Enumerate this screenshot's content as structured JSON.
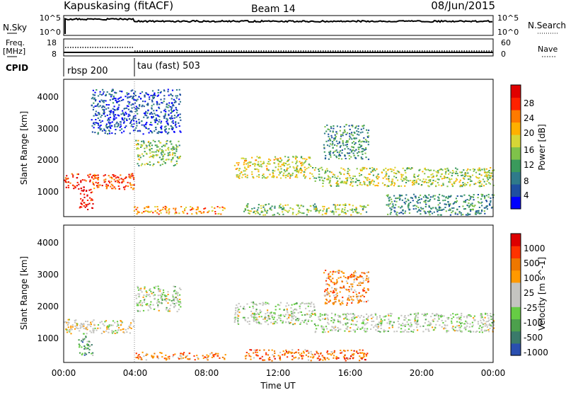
{
  "header": {
    "station": "Kapuskasing (fitACF)",
    "beam": "Beam 14",
    "date": "08/Jun/2015"
  },
  "nsky_panel": {
    "left_label": "N.Sky",
    "right_label": "N.Search",
    "left_ticks": [
      "10^5",
      "10^0"
    ],
    "right_ticks": [
      "10^5",
      "10^0"
    ]
  },
  "freq_panel": {
    "left_label_1": "Freq.",
    "left_label_2": "[MHz]",
    "right_label": "Nave",
    "left_ticks": [
      "18",
      "8"
    ],
    "right_ticks": [
      "60",
      "0"
    ]
  },
  "cpid_panel": {
    "label": "CPID",
    "programs": [
      {
        "name": "rbsp 200",
        "start_hour": 0
      },
      {
        "name": "tau (fast) 503",
        "start_hour": 4
      }
    ]
  },
  "chart_data": [
    {
      "type": "heatmap",
      "title": "",
      "xlabel": "",
      "ylabel": "Slant Range [km]",
      "x_range_hours": [
        0,
        24
      ],
      "ylim": [
        180,
        4500
      ],
      "x_ticks": [],
      "y_ticks": [
        "1000",
        "2000",
        "3000",
        "4000"
      ],
      "colorbar": {
        "label": "Power [dB]",
        "ticks": [
          "4",
          "8",
          "12",
          "16",
          "20",
          "24",
          "28"
        ],
        "colors": [
          "#0000ff",
          "#1f4fa0",
          "#2f7a8a",
          "#3a9a5c",
          "#7fc24a",
          "#d6d636",
          "#ffb000",
          "#ff7a00",
          "#ff2200",
          "#e00000"
        ]
      },
      "regions": [
        {
          "hours": [
            0.0,
            3.9
          ],
          "range_km": [
            1050,
            1550
          ],
          "level": 0.85
        },
        {
          "hours": [
            0.8,
            1.6
          ],
          "range_km": [
            420,
            1050
          ],
          "level": 0.95
        },
        {
          "hours": [
            3.9,
            9.0
          ],
          "range_km": [
            280,
            520
          ],
          "level": 0.7
        },
        {
          "hours": [
            4.0,
            6.5
          ],
          "range_km": [
            1800,
            2600
          ],
          "level": 0.45
        },
        {
          "hours": [
            1.5,
            6.5
          ],
          "range_km": [
            2800,
            4200
          ],
          "level": 0.15
        },
        {
          "hours": [
            9.5,
            14.0
          ],
          "range_km": [
            1400,
            2100
          ],
          "level": 0.55
        },
        {
          "hours": [
            14.0,
            24.0
          ],
          "range_km": [
            1150,
            1750
          ],
          "level": 0.5
        },
        {
          "hours": [
            10.0,
            17.0
          ],
          "range_km": [
            250,
            600
          ],
          "level": 0.45
        },
        {
          "hours": [
            14.5,
            17.0
          ],
          "range_km": [
            2000,
            3100
          ],
          "level": 0.3
        },
        {
          "hours": [
            18.0,
            24.0
          ],
          "range_km": [
            250,
            900
          ],
          "level": 0.3
        }
      ]
    },
    {
      "type": "heatmap",
      "title": "",
      "xlabel": "Time UT",
      "ylabel": "Slant Range [km]",
      "x_range_hours": [
        0,
        24
      ],
      "ylim": [
        180,
        4500
      ],
      "x_ticks": [
        "00:00",
        "04:00",
        "08:00",
        "12:00",
        "16:00",
        "20:00",
        "00:00"
      ],
      "y_ticks": [
        "1000",
        "2000",
        "3000",
        "4000"
      ],
      "colorbar": {
        "label": "Velocity [m s^-1]",
        "ticks": [
          "1000",
          "500",
          "100",
          "25",
          "-25",
          "-100",
          "-500",
          "-1000"
        ],
        "colors": [
          "#2a4fb0",
          "#3a7a6a",
          "#4ca04c",
          "#66cc44",
          "#c4c4c0",
          "#c4c4c0",
          "#ff9900",
          "#ee7700",
          "#ff3300",
          "#dd0000"
        ]
      },
      "regions": [
        {
          "hours": [
            0.0,
            3.9
          ],
          "range_km": [
            1100,
            1550
          ],
          "level": 0.5
        },
        {
          "hours": [
            0.8,
            1.6
          ],
          "range_km": [
            420,
            1050
          ],
          "level": 0.25
        },
        {
          "hours": [
            3.9,
            9.0
          ],
          "range_km": [
            280,
            520
          ],
          "level": 0.7
        },
        {
          "hours": [
            4.0,
            6.5
          ],
          "range_km": [
            1800,
            2600
          ],
          "level": 0.45
        },
        {
          "hours": [
            9.5,
            14.0
          ],
          "range_km": [
            1400,
            2100
          ],
          "level": 0.45
        },
        {
          "hours": [
            14.0,
            24.0
          ],
          "range_km": [
            1150,
            1750
          ],
          "level": 0.45
        },
        {
          "hours": [
            10.0,
            17.0
          ],
          "range_km": [
            250,
            600
          ],
          "level": 0.75
        },
        {
          "hours": [
            14.5,
            17.0
          ],
          "range_km": [
            2000,
            3100
          ],
          "level": 0.7
        }
      ]
    }
  ]
}
